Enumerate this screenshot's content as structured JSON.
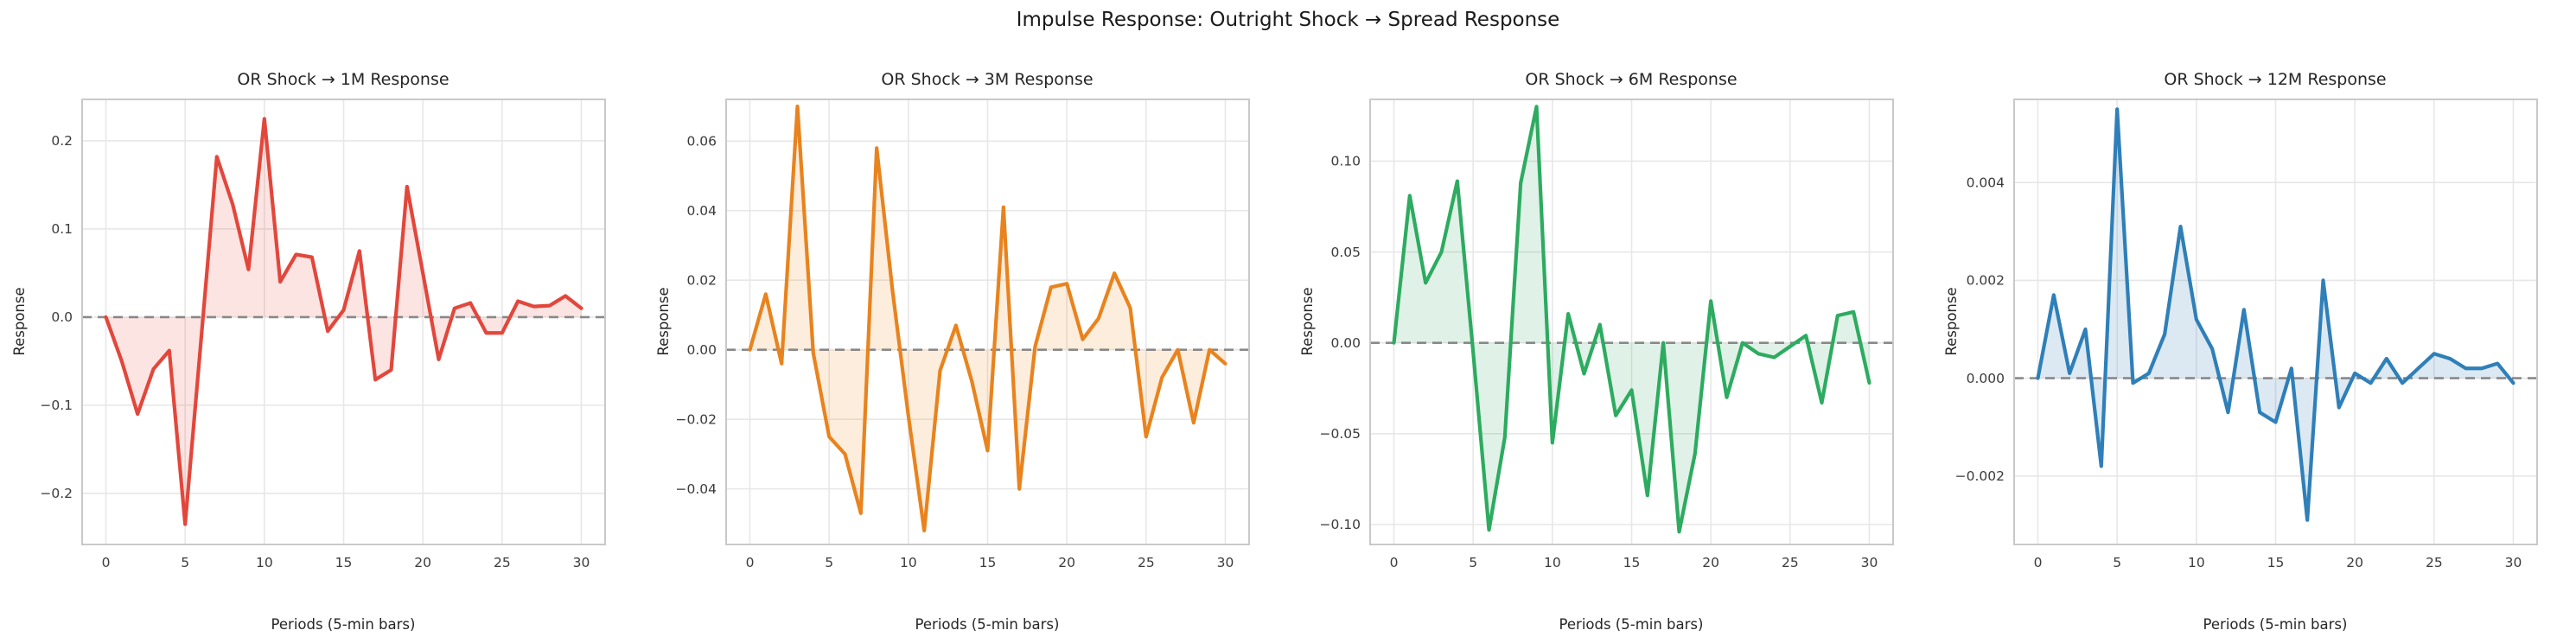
{
  "figure": {
    "suptitle": "Impulse Response: Outright Shock → Spread Response",
    "background": "#ffffff",
    "text_color": "#262626",
    "grid_color": "#e7e7e7",
    "spine_color": "#c9c9c9",
    "zero_line_color": "#7f7f7f"
  },
  "chart_data": [
    {
      "type": "area",
      "title": "OR Shock → 1M Response",
      "xlabel": "Periods (5-min bars)",
      "ylabel": "Response",
      "line_color": "#e2473c",
      "fill_color": "rgba(226,71,60,0.15)",
      "grid": true,
      "legend": null,
      "zero_line": 0,
      "xlim": [
        -1.5,
        31.5
      ],
      "ylim": [
        -0.258,
        0.247
      ],
      "xticks": [
        0,
        5,
        10,
        15,
        20,
        25,
        30
      ],
      "xtick_labels": [
        "0",
        "5",
        "10",
        "15",
        "20",
        "25",
        "30"
      ],
      "yticks": [
        0.2,
        0.1,
        0.0,
        -0.1,
        -0.2
      ],
      "ytick_labels": [
        "0.2",
        "0.1",
        "0.0",
        "−0.1",
        "−0.2"
      ],
      "x": [
        0,
        1,
        2,
        3,
        4,
        5,
        6,
        7,
        8,
        9,
        10,
        11,
        12,
        13,
        14,
        15,
        16,
        17,
        18,
        19,
        20,
        21,
        22,
        23,
        24,
        25,
        26,
        27,
        28,
        29,
        30
      ],
      "values": [
        0.0,
        -0.05,
        -0.11,
        -0.059,
        -0.038,
        -0.235,
        -0.027,
        0.182,
        0.128,
        0.054,
        0.225,
        0.04,
        0.071,
        0.068,
        -0.016,
        0.008,
        0.075,
        -0.071,
        -0.06,
        0.148,
        0.05,
        -0.048,
        0.01,
        0.016,
        -0.018,
        -0.018,
        0.018,
        0.012,
        0.013,
        0.024,
        0.01
      ]
    },
    {
      "type": "area",
      "title": "OR Shock → 3M Response",
      "xlabel": "Periods (5-min bars)",
      "ylabel": "Response",
      "line_color": "#e8831e",
      "fill_color": "rgba(232,131,30,0.15)",
      "grid": true,
      "legend": null,
      "zero_line": 0,
      "xlim": [
        -1.5,
        31.5
      ],
      "ylim": [
        -0.056,
        0.072
      ],
      "xticks": [
        0,
        5,
        10,
        15,
        20,
        25,
        30
      ],
      "xtick_labels": [
        "0",
        "5",
        "10",
        "15",
        "20",
        "25",
        "30"
      ],
      "yticks": [
        0.06,
        0.04,
        0.02,
        0.0,
        -0.02,
        -0.04
      ],
      "ytick_labels": [
        "0.06",
        "0.04",
        "0.02",
        "0.00",
        "−0.02",
        "−0.04"
      ],
      "x": [
        0,
        1,
        2,
        3,
        4,
        5,
        6,
        7,
        8,
        9,
        10,
        11,
        12,
        13,
        14,
        15,
        16,
        17,
        18,
        19,
        20,
        21,
        22,
        23,
        24,
        25,
        26,
        27,
        28,
        29,
        30
      ],
      "values": [
        0.0,
        0.016,
        -0.004,
        0.07,
        -0.001,
        -0.025,
        -0.03,
        -0.047,
        0.058,
        0.017,
        -0.019,
        -0.052,
        -0.006,
        0.007,
        -0.009,
        -0.029,
        0.041,
        -0.04,
        0.001,
        0.018,
        0.019,
        0.003,
        0.009,
        0.022,
        0.012,
        -0.025,
        -0.008,
        0.0,
        -0.021,
        0.0,
        -0.004
      ]
    },
    {
      "type": "area",
      "title": "OR Shock → 6M Response",
      "xlabel": "Periods (5-min bars)",
      "ylabel": "Response",
      "line_color": "#2dab60",
      "fill_color": "rgba(45,171,96,0.15)",
      "grid": true,
      "legend": null,
      "zero_line": 0,
      "xlim": [
        -1.5,
        31.5
      ],
      "ylim": [
        -0.111,
        0.134
      ],
      "xticks": [
        0,
        5,
        10,
        15,
        20,
        25,
        30
      ],
      "xtick_labels": [
        "0",
        "5",
        "10",
        "15",
        "20",
        "25",
        "30"
      ],
      "yticks": [
        0.1,
        0.05,
        0.0,
        -0.05,
        -0.1
      ],
      "ytick_labels": [
        "0.10",
        "0.05",
        "0.00",
        "−0.05",
        "−0.10"
      ],
      "x": [
        0,
        1,
        2,
        3,
        4,
        5,
        6,
        7,
        8,
        9,
        10,
        11,
        12,
        13,
        14,
        15,
        16,
        17,
        18,
        19,
        20,
        21,
        22,
        23,
        24,
        25,
        26,
        27,
        28,
        29,
        30
      ],
      "values": [
        0.0,
        0.081,
        0.033,
        0.05,
        0.089,
        -0.005,
        -0.103,
        -0.052,
        0.088,
        0.13,
        -0.055,
        0.016,
        -0.017,
        0.01,
        -0.04,
        -0.026,
        -0.084,
        0.0,
        -0.104,
        -0.061,
        0.023,
        -0.03,
        0.0,
        -0.006,
        -0.008,
        -0.002,
        0.004,
        -0.033,
        0.015,
        0.017,
        -0.022
      ]
    },
    {
      "type": "area",
      "title": "OR Shock → 12M Response",
      "xlabel": "Periods (5-min bars)",
      "ylabel": "Response",
      "line_color": "#2f7fb8",
      "fill_color": "rgba(47,127,184,0.17)",
      "grid": true,
      "legend": null,
      "zero_line": 0,
      "xlim": [
        -1.5,
        31.5
      ],
      "ylim": [
        -0.0034,
        0.0057
      ],
      "xticks": [
        0,
        5,
        10,
        15,
        20,
        25,
        30
      ],
      "xtick_labels": [
        "0",
        "5",
        "10",
        "15",
        "20",
        "25",
        "30"
      ],
      "yticks": [
        0.004,
        0.002,
        0.0,
        -0.002
      ],
      "ytick_labels": [
        "0.004",
        "0.002",
        "0.000",
        "−0.002"
      ],
      "x": [
        0,
        1,
        2,
        3,
        4,
        5,
        6,
        7,
        8,
        9,
        10,
        11,
        12,
        13,
        14,
        15,
        16,
        17,
        18,
        19,
        20,
        21,
        22,
        23,
        24,
        25,
        26,
        27,
        28,
        29,
        30
      ],
      "values": [
        0.0,
        0.0017,
        0.0001,
        0.001,
        -0.0018,
        0.0055,
        -0.0001,
        0.0001,
        0.0009,
        0.0031,
        0.0012,
        0.0006,
        -0.0007,
        0.0014,
        -0.0007,
        -0.0009,
        0.0002,
        -0.0029,
        0.002,
        -0.0006,
        0.0001,
        -0.0001,
        0.0004,
        -0.0001,
        0.0002,
        0.0005,
        0.0004,
        0.0002,
        0.0002,
        0.0003,
        -0.0001
      ]
    }
  ]
}
